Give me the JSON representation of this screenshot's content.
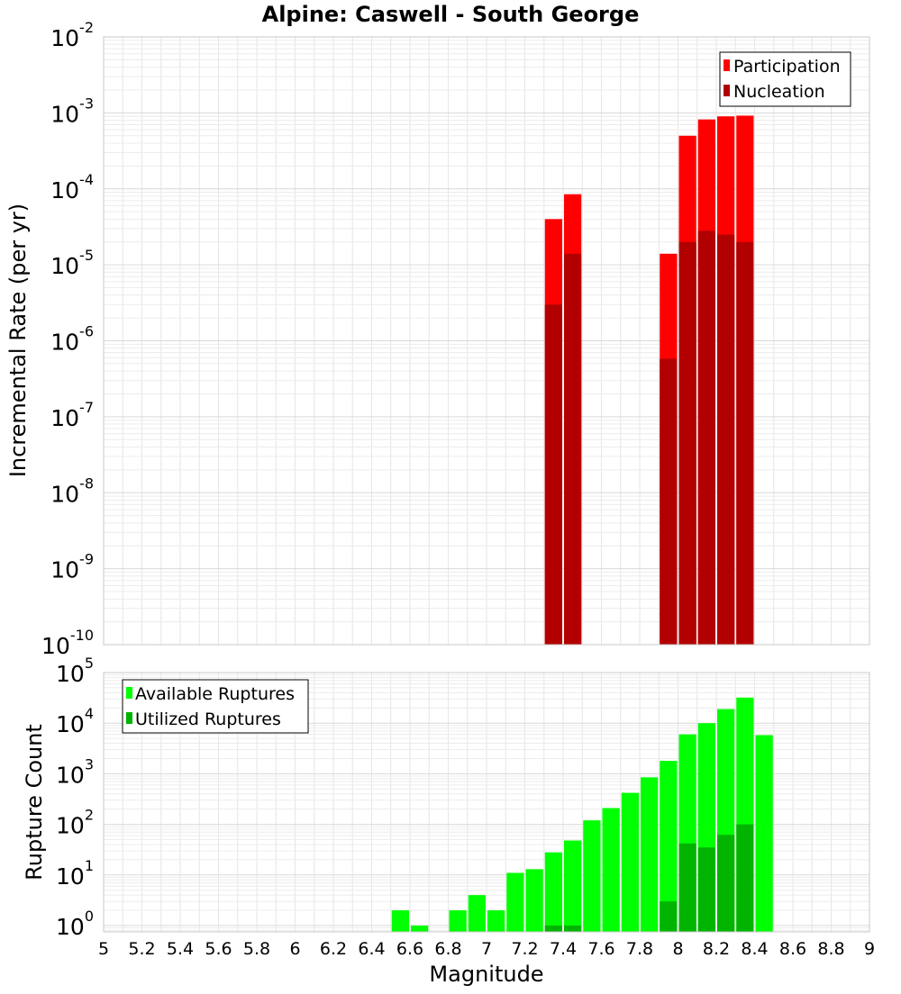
{
  "chart_data": [
    {
      "type": "bar",
      "title": "Alpine: Caswell - South George",
      "xlabel": "",
      "ylabel": "Incremental Rate (per yr)",
      "yscale": "log",
      "xlim": [
        5,
        9
      ],
      "ylim": [
        1e-10,
        0.01
      ],
      "ytick_exponents": [
        -10,
        -9,
        -8,
        -7,
        -6,
        -5,
        -4,
        -3,
        -2
      ],
      "grid": true,
      "legend_position": "top-right",
      "colors": {
        "participation": "#ff0000",
        "nucleation": "#b20000"
      },
      "legend": [
        "Participation",
        "Nucleation"
      ],
      "series": [
        {
          "name": "Participation",
          "x": [
            7.35,
            7.45,
            7.95,
            8.05,
            8.15,
            8.25,
            8.35
          ],
          "values": [
            4e-05,
            8.5e-05,
            1.4e-05,
            0.0005,
            0.00082,
            0.0009,
            0.00092
          ]
        },
        {
          "name": "Nucleation",
          "x": [
            7.35,
            7.45,
            7.95,
            8.05,
            8.15,
            8.25,
            8.35
          ],
          "values": [
            3e-06,
            1.4e-05,
            5.8e-07,
            2e-05,
            2.8e-05,
            2.5e-05,
            2e-05
          ]
        }
      ]
    },
    {
      "type": "bar",
      "title": "",
      "xlabel": "Magnitude",
      "ylabel": "Rupture Count",
      "yscale": "log",
      "xlim": [
        5,
        9
      ],
      "ylim": [
        0.75,
        100000.0
      ],
      "ytick_exponents": [
        0,
        1,
        2,
        3,
        4,
        5
      ],
      "xticks": [
        "5",
        "5.2",
        "5.4",
        "5.6",
        "5.8",
        "6",
        "6.2",
        "6.4",
        "6.6",
        "6.8",
        "7",
        "7.2",
        "7.4",
        "7.6",
        "7.8",
        "8",
        "8.2",
        "8.4",
        "8.6",
        "8.8",
        "9"
      ],
      "grid": true,
      "legend_position": "top-left",
      "colors": {
        "available": "#00ff00",
        "utilized": "#00b400"
      },
      "legend": [
        "Available Ruptures",
        "Utilized Ruptures"
      ],
      "series": [
        {
          "name": "Available Ruptures",
          "x": [
            6.55,
            6.65,
            6.85,
            6.95,
            7.05,
            7.15,
            7.25,
            7.35,
            7.45,
            7.55,
            7.65,
            7.75,
            7.85,
            7.95,
            8.05,
            8.15,
            8.25,
            8.35,
            8.45
          ],
          "values": [
            2,
            1,
            2,
            4,
            2,
            11,
            13,
            28,
            48,
            120,
            210,
            420,
            850,
            1800,
            6000,
            10000,
            19000,
            32000,
            5800
          ]
        },
        {
          "name": "Utilized Ruptures",
          "x": [
            7.35,
            7.45,
            7.95,
            8.05,
            8.15,
            8.25,
            8.35
          ],
          "values": [
            1,
            1,
            3,
            42,
            35,
            62,
            100
          ]
        }
      ]
    }
  ]
}
